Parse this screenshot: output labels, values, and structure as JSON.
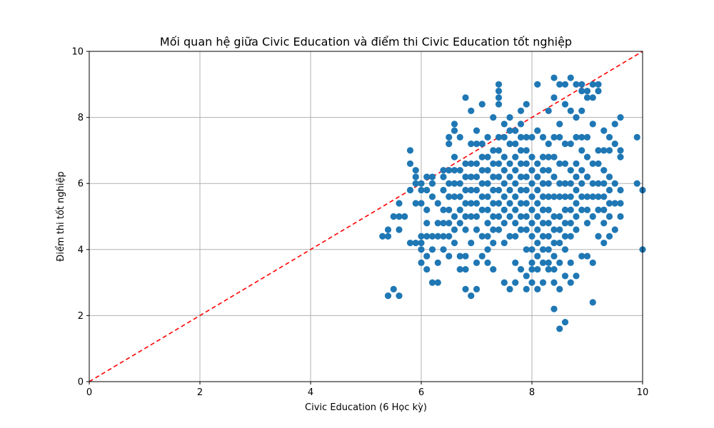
{
  "chart_data": {
    "type": "scatter",
    "title": "Mối quan hệ giữa Civic Education và điểm thi Civic Education tốt nghiệp",
    "xlabel": "Civic Education (6 Học kỳ)",
    "ylabel": "Điểm thi tốt nghiệp",
    "xlim": [
      0,
      10
    ],
    "ylim": [
      0,
      10
    ],
    "xticks": [
      "0",
      "2",
      "4",
      "6",
      "8",
      "10"
    ],
    "yticks": [
      "0",
      "2",
      "4",
      "6",
      "8",
      "10"
    ],
    "grid": true,
    "legend": "none",
    "colors": {
      "points": "#1f77b4",
      "reference_line": "#ff0000",
      "grid": "#b0b0b0"
    },
    "reference_line": {
      "style": "dashed",
      "points": [
        [
          0,
          0
        ],
        [
          10,
          10
        ]
      ]
    },
    "series": [
      {
        "x": [
          5.3,
          5.4,
          5.4,
          5.4,
          5.5,
          5.5,
          5.6,
          5.6,
          5.6,
          5.6,
          5.7,
          5.8,
          5.8,
          5.8,
          5.8,
          5.9,
          5.9,
          5.9,
          5.9,
          5.9,
          6.0,
          6.0,
          6.0,
          6.0,
          6.0,
          6.0,
          6.0,
          6.1,
          6.1,
          6.1,
          6.1,
          6.1,
          6.1,
          6.1,
          6.2,
          6.2,
          6.2,
          6.2,
          6.2,
          6.2,
          6.3,
          6.3,
          6.3,
          6.3,
          6.3,
          6.4,
          6.4,
          6.4,
          6.4,
          6.4,
          6.4,
          6.4,
          6.5,
          6.5,
          6.5,
          6.5,
          6.5,
          6.5,
          6.5,
          6.5,
          6.5,
          6.6,
          6.6,
          6.6,
          6.6,
          6.6,
          6.6,
          6.6,
          6.6,
          6.6,
          6.7,
          6.7,
          6.7,
          6.7,
          6.7,
          6.7,
          6.7,
          6.7,
          6.8,
          6.8,
          6.8,
          6.8,
          6.8,
          6.8,
          6.8,
          6.8,
          6.8,
          6.8,
          6.9,
          6.9,
          6.9,
          6.9,
          6.9,
          6.9,
          6.9,
          6.9,
          6.9,
          7.0,
          7.0,
          7.0,
          7.0,
          7.0,
          7.0,
          7.0,
          7.0,
          7.0,
          7.0,
          7.1,
          7.1,
          7.1,
          7.1,
          7.1,
          7.1,
          7.1,
          7.1,
          7.1,
          7.2,
          7.2,
          7.2,
          7.2,
          7.2,
          7.2,
          7.2,
          7.2,
          7.2,
          7.2,
          7.3,
          7.3,
          7.3,
          7.3,
          7.3,
          7.3,
          7.3,
          7.3,
          7.3,
          7.3,
          7.4,
          7.4,
          7.4,
          7.4,
          7.4,
          7.4,
          7.4,
          7.4,
          7.4,
          7.4,
          7.4,
          7.4,
          7.5,
          7.5,
          7.5,
          7.5,
          7.5,
          7.5,
          7.5,
          7.5,
          7.5,
          7.5,
          7.6,
          7.6,
          7.6,
          7.6,
          7.6,
          7.6,
          7.6,
          7.6,
          7.6,
          7.6,
          7.7,
          7.7,
          7.7,
          7.7,
          7.7,
          7.7,
          7.7,
          7.7,
          7.7,
          7.7,
          7.7,
          7.8,
          7.8,
          7.8,
          7.8,
          7.8,
          7.8,
          7.8,
          7.8,
          7.8,
          7.8,
          7.8,
          7.9,
          7.9,
          7.9,
          7.9,
          7.9,
          7.9,
          7.9,
          7.9,
          7.9,
          7.9,
          7.9,
          7.9,
          8.0,
          8.0,
          8.0,
          8.0,
          8.0,
          8.0,
          8.0,
          8.0,
          8.0,
          8.0,
          8.0,
          8.0,
          8.1,
          8.1,
          8.1,
          8.1,
          8.1,
          8.1,
          8.1,
          8.1,
          8.1,
          8.1,
          8.1,
          8.1,
          8.2,
          8.2,
          8.2,
          8.2,
          8.2,
          8.2,
          8.2,
          8.2,
          8.2,
          8.2,
          8.2,
          8.2,
          8.2,
          8.3,
          8.3,
          8.3,
          8.3,
          8.3,
          8.3,
          8.3,
          8.3,
          8.3,
          8.3,
          8.3,
          8.3,
          8.4,
          8.4,
          8.4,
          8.4,
          8.4,
          8.4,
          8.4,
          8.4,
          8.4,
          8.4,
          8.4,
          8.4,
          8.4,
          8.5,
          8.5,
          8.5,
          8.5,
          8.5,
          8.5,
          8.5,
          8.5,
          8.5,
          8.5,
          8.5,
          8.5,
          8.6,
          8.6,
          8.6,
          8.6,
          8.6,
          8.6,
          8.6,
          8.6,
          8.6,
          8.6,
          8.6,
          8.6,
          8.7,
          8.7,
          8.7,
          8.7,
          8.7,
          8.7,
          8.7,
          8.7,
          8.7,
          8.7,
          8.7,
          8.8,
          8.8,
          8.8,
          8.8,
          8.8,
          8.8,
          8.8,
          8.8,
          8.8,
          8.8,
          8.9,
          8.9,
          8.9,
          8.9,
          8.9,
          8.9,
          8.9,
          8.9,
          8.9,
          8.9,
          9.0,
          9.0,
          9.0,
          9.0,
          9.0,
          9.0,
          9.0,
          9.0,
          9.0,
          9.1,
          9.1,
          9.1,
          9.1,
          9.1,
          9.1,
          9.1,
          9.1,
          9.1,
          9.2,
          9.2,
          9.2,
          9.2,
          9.2,
          9.2,
          9.2,
          9.2,
          9.3,
          9.3,
          9.3,
          9.3,
          9.3,
          9.3,
          9.3,
          9.3,
          9.4,
          9.4,
          9.4,
          9.4,
          9.4,
          9.4,
          9.4,
          9.5,
          9.5,
          9.5,
          9.5,
          9.5,
          9.6,
          9.6,
          9.6,
          9.6,
          9.6,
          9.6,
          9.9,
          9.9,
          10.0,
          10.0
        ],
        "y": [
          4.4,
          2.6,
          4.4,
          4.6,
          2.8,
          5.0,
          2.6,
          4.6,
          5.0,
          5.4,
          5.0,
          5.8,
          6.6,
          7.0,
          4.2,
          6.2,
          6.4,
          5.4,
          4.2,
          6.0,
          5.8,
          4.4,
          3.6,
          4.0,
          4.2,
          5.4,
          6.0,
          6.2,
          5.8,
          5.2,
          4.8,
          4.4,
          3.8,
          3.4,
          6.0,
          5.6,
          4.4,
          4.0,
          3.0,
          6.2,
          5.4,
          4.8,
          4.4,
          3.6,
          3.0,
          6.4,
          6.2,
          5.8,
          5.2,
          4.8,
          4.4,
          4.0,
          7.4,
          7.2,
          6.4,
          6.0,
          5.6,
          5.2,
          4.8,
          4.4,
          3.8,
          7.8,
          7.6,
          6.8,
          6.4,
          6.0,
          5.6,
          5.0,
          4.6,
          4.2,
          7.4,
          6.4,
          6.0,
          5.6,
          5.2,
          4.8,
          3.8,
          3.4,
          8.6,
          6.6,
          6.2,
          5.8,
          5.4,
          5.0,
          4.6,
          3.8,
          3.4,
          2.8,
          8.2,
          7.2,
          6.6,
          6.2,
          5.8,
          5.4,
          5.0,
          4.2,
          2.6,
          7.6,
          7.2,
          6.6,
          6.2,
          5.8,
          5.4,
          5.0,
          4.6,
          3.6,
          2.8,
          8.4,
          7.2,
          6.8,
          6.4,
          6.0,
          5.6,
          5.2,
          4.4,
          3.8,
          7.4,
          6.8,
          6.4,
          6.0,
          5.6,
          5.2,
          4.8,
          4.4,
          4.0,
          3.6,
          8.0,
          7.0,
          6.6,
          6.2,
          5.8,
          5.4,
          5.0,
          4.6,
          4.2,
          3.4,
          9.0,
          8.8,
          8.6,
          8.4,
          7.4,
          7.0,
          6.6,
          6.2,
          5.8,
          5.4,
          5.0,
          4.6,
          7.8,
          7.4,
          6.8,
          6.4,
          6.0,
          5.6,
          5.2,
          4.8,
          4.2,
          3.0,
          8.0,
          7.6,
          7.2,
          6.6,
          6.2,
          5.8,
          5.4,
          5.0,
          4.4,
          2.8,
          7.6,
          7.2,
          6.8,
          6.4,
          6.0,
          5.6,
          5.2,
          4.8,
          4.4,
          3.6,
          3.0,
          8.2,
          7.8,
          7.4,
          7.0,
          6.6,
          6.2,
          5.8,
          5.4,
          5.0,
          4.6,
          3.4,
          8.4,
          7.4,
          7.0,
          6.6,
          6.2,
          5.8,
          5.4,
          5.0,
          4.6,
          4.0,
          3.2,
          2.8,
          7.4,
          6.8,
          6.4,
          6.0,
          5.6,
          5.2,
          4.8,
          4.4,
          4.0,
          3.6,
          3.0,
          3.4,
          9.0,
          7.6,
          6.6,
          6.2,
          5.8,
          5.4,
          5.0,
          4.6,
          4.2,
          3.8,
          3.4,
          2.8,
          7.4,
          6.8,
          6.4,
          6.0,
          5.6,
          5.2,
          4.8,
          4.4,
          4.0,
          3.6,
          3.0,
          6.0,
          5.2,
          8.2,
          7.2,
          6.8,
          6.4,
          6.0,
          5.6,
          5.2,
          4.8,
          4.4,
          4.0,
          3.6,
          3.4,
          9.2,
          8.6,
          7.4,
          6.8,
          6.2,
          5.6,
          5.0,
          4.6,
          4.2,
          3.8,
          3.4,
          3.0,
          2.2,
          9.0,
          7.8,
          7.4,
          6.6,
          6.0,
          5.6,
          5.0,
          4.6,
          4.2,
          3.6,
          2.8,
          1.6,
          9.0,
          8.4,
          7.2,
          6.6,
          6.0,
          5.6,
          5.2,
          4.8,
          4.4,
          4.0,
          3.2,
          1.8,
          9.2,
          8.2,
          7.2,
          6.4,
          6.0,
          5.6,
          5.2,
          4.8,
          4.4,
          3.6,
          3.0,
          9.0,
          8.0,
          7.4,
          6.6,
          6.2,
          5.8,
          5.4,
          5.0,
          4.6,
          3.2,
          9.0,
          8.8,
          8.2,
          7.4,
          7.0,
          6.4,
          6.0,
          5.6,
          5.2,
          3.8,
          8.8,
          8.6,
          7.4,
          6.8,
          6.2,
          5.6,
          5.2,
          4.8,
          3.8,
          9.0,
          8.6,
          7.8,
          6.6,
          6.0,
          5.6,
          5.0,
          3.6,
          2.4,
          9.0,
          8.8,
          7.0,
          6.6,
          6.0,
          5.6,
          5.2,
          4.4,
          7.6,
          7.0,
          6.4,
          6.0,
          5.6,
          5.2,
          4.8,
          4.2,
          7.4,
          7.0,
          6.2,
          5.8,
          5.4,
          5.0,
          4.4,
          7.8,
          7.2,
          6.0,
          5.4,
          4.6,
          8.0,
          7.0,
          6.8,
          5.8,
          5.4,
          5.0,
          7.4,
          6.0,
          5.8,
          4.0
        ]
      }
    ]
  }
}
